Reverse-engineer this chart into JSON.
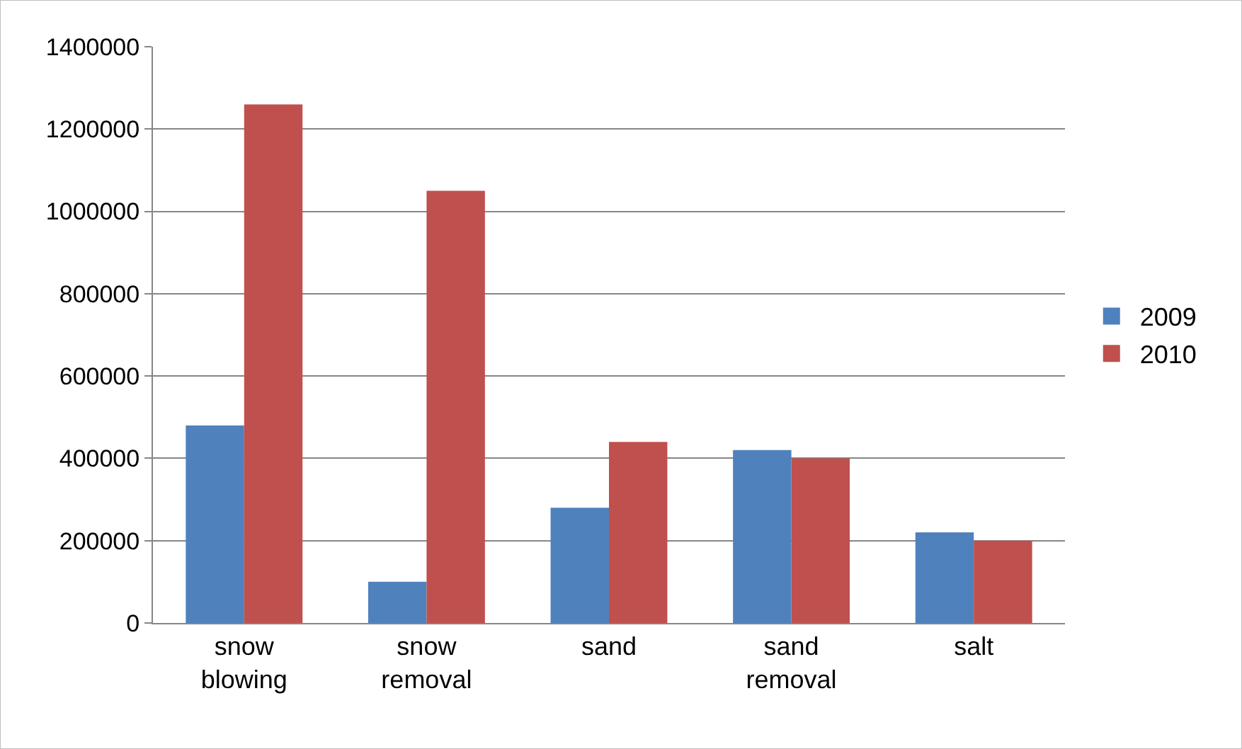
{
  "chart_data": {
    "type": "bar",
    "categories": [
      "snow blowing",
      "snow removal",
      "sand",
      "sand removal",
      "salt"
    ],
    "series": [
      {
        "name": "2009",
        "color": "#4f81bd",
        "values": [
          480000,
          100000,
          280000,
          420000,
          220000
        ]
      },
      {
        "name": "2010",
        "color": "#c0504d",
        "values": [
          1260000,
          1050000,
          440000,
          400000,
          200000
        ]
      }
    ],
    "ylim": [
      0,
      1400000
    ],
    "yticks": [
      0,
      200000,
      400000,
      600000,
      800000,
      1000000,
      1200000,
      1400000
    ],
    "grid": "y",
    "legend": "right"
  }
}
